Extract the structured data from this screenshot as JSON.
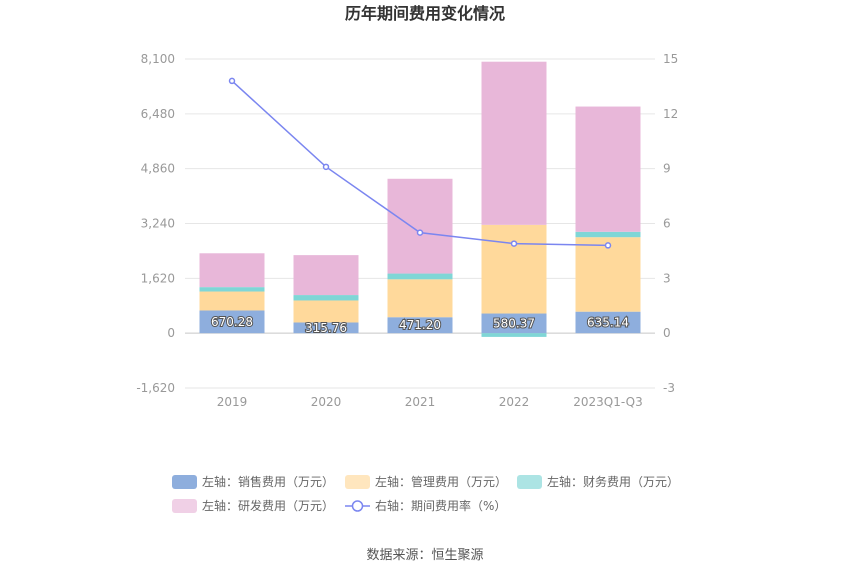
{
  "chart_data": {
    "type": "bar",
    "title": "历年期间费用变化情况",
    "categories": [
      "2019",
      "2020",
      "2021",
      "2022",
      "2023Q1-Q3"
    ],
    "stacked": true,
    "left_axis": {
      "ylim": [
        -1620,
        8100
      ],
      "ticks": [
        "8,100",
        "6,480",
        "4,860",
        "3,240",
        "1,620",
        "0",
        "-1,620"
      ]
    },
    "right_axis": {
      "ylim": [
        -3,
        15
      ],
      "ticks": [
        "15",
        "12",
        "9",
        "6",
        "3",
        "0",
        "-3"
      ]
    },
    "series": [
      {
        "name": "左轴：销售费用（万元）",
        "axis": "left",
        "type": "bar",
        "color": "#8eaedd",
        "values": [
          670.28,
          315.76,
          471.2,
          580.37,
          635.14
        ],
        "labels": [
          "670.28",
          "315.76",
          "471.20",
          "580.37",
          "635.14"
        ]
      },
      {
        "name": "左轴：管理费用（万元）",
        "axis": "left",
        "type": "bar",
        "color": "#ffd99b",
        "values": [
          560,
          650,
          1120,
          2620,
          2200
        ]
      },
      {
        "name": "左轴：财务费用（万元）",
        "axis": "left",
        "type": "bar",
        "color": "#7fd6d6",
        "values": [
          130,
          160,
          170,
          -110,
          160
        ]
      },
      {
        "name": "左轴：研发费用（万元）",
        "axis": "left",
        "type": "bar",
        "color": "#e8b7d9",
        "values": [
          1000,
          1180,
          2800,
          4820,
          3700
        ]
      },
      {
        "name": "右轴：期间费用率（%）",
        "axis": "right",
        "type": "line",
        "color": "#7b86f0",
        "values": [
          13.8,
          9.1,
          5.5,
          4.9,
          4.8
        ]
      }
    ],
    "grid": true,
    "legend_position": "bottom"
  },
  "source": "数据来源：恒生聚源"
}
